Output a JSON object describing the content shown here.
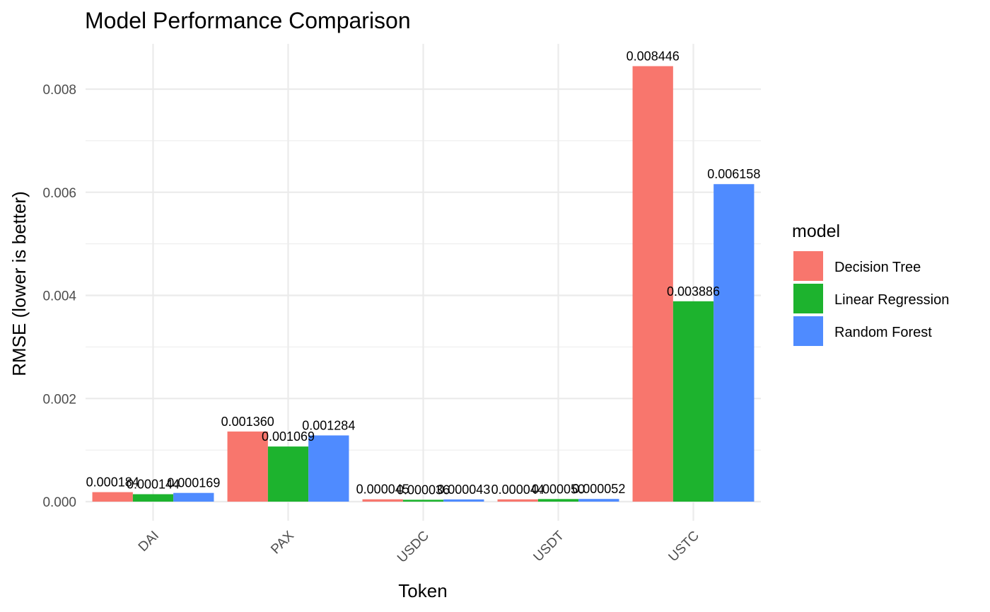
{
  "chart_data": {
    "type": "bar",
    "title": "Model Performance Comparison",
    "xlabel": "Token",
    "ylabel": "RMSE (lower is better)",
    "categories": [
      "DAI",
      "PAX",
      "USDC",
      "USDT",
      "USTC"
    ],
    "ylim": [
      0,
      0.0089
    ],
    "y_ticks": [
      0,
      0.002,
      0.004,
      0.006,
      0.008
    ],
    "y_tick_labels": [
      "0.000",
      "0.002",
      "0.004",
      "0.006",
      "0.008"
    ],
    "grid": true,
    "legend": {
      "title": "model",
      "position": "right"
    },
    "series": [
      {
        "name": "Decision Tree",
        "color": "#F8766D",
        "values": [
          0.000184,
          0.00136,
          4.5e-05,
          4.4e-05,
          0.008446
        ],
        "labels": [
          "0.000184",
          "0.001360",
          "0.000045",
          "0.000044",
          "0.008446"
        ]
      },
      {
        "name": "Linear Regression",
        "color": "#1DB32E",
        "values": [
          0.000144,
          0.001069,
          3.6e-05,
          5e-05,
          0.003886
        ],
        "labels": [
          "0.000144",
          "0.001069",
          "0.000036",
          "0.000050",
          "0.003886"
        ]
      },
      {
        "name": "Random Forest",
        "color": "#4F8BFF",
        "values": [
          0.000169,
          0.001284,
          4.3e-05,
          5.2e-05,
          0.006158
        ],
        "labels": [
          "0.000169",
          "0.001284",
          "0.000043",
          "0.000052",
          "0.006158"
        ]
      }
    ]
  }
}
